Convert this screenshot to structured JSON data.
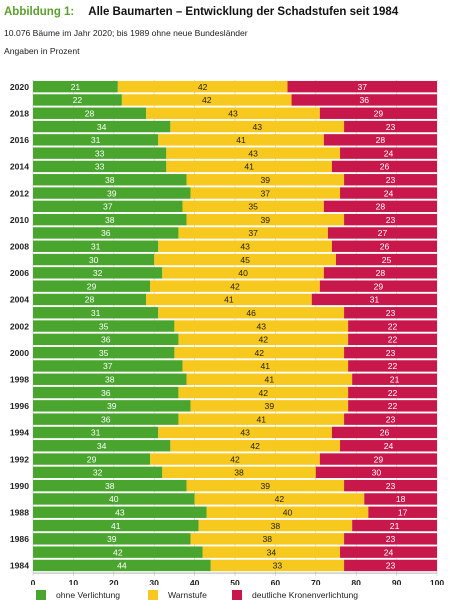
{
  "header": {
    "figure_label": "Abbildung 1:",
    "title": "Alle Baumarten – Entwicklung der Schadstufen seit 1984",
    "subtitle": "10.076 Bäume im Jahr 2020; bis 1989 ohne neue Bundesländer",
    "unit_note": "Angaben in Prozent"
  },
  "colors": {
    "green": "#4aa52e",
    "yellow": "#f7c81d",
    "red": "#c8174b"
  },
  "chart_data": {
    "type": "bar",
    "orientation": "horizontal",
    "stacked": true,
    "years": [
      2020,
      2019,
      2018,
      2017,
      2016,
      2015,
      2014,
      2013,
      2012,
      2011,
      2010,
      2009,
      2008,
      2007,
      2006,
      2005,
      2004,
      2003,
      2002,
      2001,
      2000,
      1999,
      1998,
      1997,
      1996,
      1995,
      1994,
      1993,
      1992,
      1991,
      1990,
      1989,
      1988,
      1987,
      1986,
      1985,
      1984
    ],
    "year_labels": [
      "2020",
      "",
      "2018",
      "",
      "2016",
      "",
      "2014",
      "",
      "2012",
      "",
      "2010",
      "",
      "2008",
      "",
      "2006",
      "",
      "2004",
      "",
      "2002",
      "",
      "2000",
      "",
      "1998",
      "",
      "1996",
      "",
      "1994",
      "",
      "1992",
      "",
      "1990",
      "",
      "1988",
      "",
      "1986",
      "",
      "1984"
    ],
    "series": [
      {
        "name": "ohne Verlichtung",
        "color": "#4aa52e",
        "values": [
          21,
          22,
          28,
          34,
          31,
          33,
          33,
          38,
          39,
          37,
          38,
          36,
          31,
          30,
          32,
          29,
          28,
          31,
          35,
          36,
          35,
          37,
          38,
          36,
          39,
          36,
          31,
          34,
          29,
          32,
          38,
          40,
          43,
          41,
          39,
          42,
          44
        ]
      },
      {
        "name": "Warnstufe",
        "color": "#f7c81d",
        "values": [
          42,
          42,
          43,
          43,
          41,
          43,
          41,
          39,
          37,
          35,
          39,
          37,
          43,
          45,
          40,
          42,
          41,
          46,
          43,
          42,
          42,
          41,
          41,
          42,
          39,
          41,
          43,
          42,
          42,
          38,
          39,
          42,
          40,
          38,
          38,
          34,
          33
        ]
      },
      {
        "name": "deutliche Kronenverlichtung",
        "color": "#c8174b",
        "values": [
          37,
          36,
          29,
          23,
          28,
          24,
          26,
          23,
          24,
          28,
          23,
          27,
          26,
          25,
          28,
          29,
          31,
          23,
          22,
          22,
          23,
          22,
          21,
          22,
          22,
          23,
          26,
          24,
          29,
          30,
          23,
          18,
          17,
          21,
          23,
          24,
          23
        ]
      }
    ],
    "x_ticks": [
      0,
      10,
      20,
      30,
      40,
      50,
      60,
      70,
      80,
      90,
      100
    ],
    "xlim": [
      0,
      100
    ],
    "legend_position": "bottom",
    "grid": true
  }
}
